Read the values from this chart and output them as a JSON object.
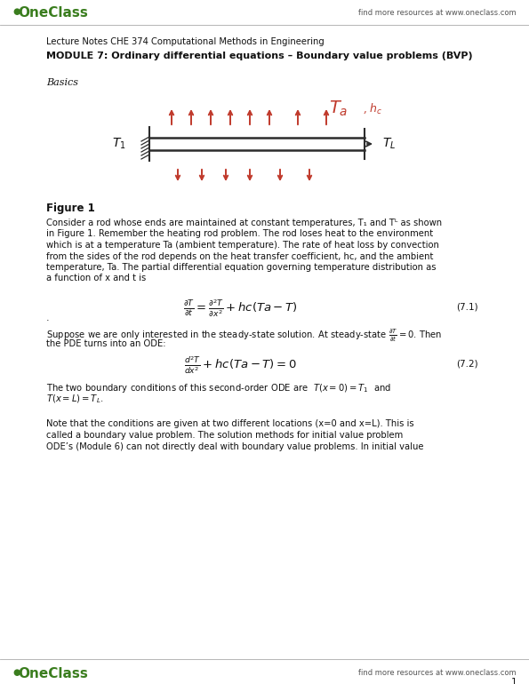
{
  "bg_color": "#ffffff",
  "page_width": 5.95,
  "page_height": 7.7,
  "dpi": 100,
  "oneclass_green": "#3a7d1e",
  "header_text": "find more resources at www.oneclass.com",
  "footer_text": "find more resources at www.oneclass.com",
  "course_line": "Lecture Notes CHE 374 Computational Methods in Engineering",
  "module_title": "MODULE 7: Ordinary differential equations – Boundary value problems (BVP)",
  "basics_label": "Basics",
  "figure_label": "Figure 1",
  "page_number": "1",
  "para1_lines": [
    "Consider a rod whose ends are maintained at constant temperatures, T₁ and Tᴸ as shown",
    "in Figure 1. Remember the heating rod problem. The rod loses heat to the environment",
    "which is at a temperature Ta (ambient temperature). The rate of heat loss by convection",
    "from the sides of the rod depends on the heat transfer coefficient, hc, and the ambient",
    "temperature, Ta. The partial differential equation governing temperature distribution as",
    "a function of x and t is"
  ],
  "eq1_label": "(7.1)",
  "steady_state_lines": [
    "Suppose we are only interested in the steady-state solution. At steady-state",
    "the PDE turns into an ODE:"
  ],
  "eq2_label": "(7.2)",
  "bc_lines": [
    "The two boundary conditions of this second-order ODE are  T(x = 0) = T₁  and",
    "T(x = L) = Tᴸ."
  ],
  "note_lines": [
    "Note that the conditions are given at two different locations (x=0 and x=L). This is",
    "called a ​boundary value problem​. The solution methods for ​initial value problem​",
    "ODE’s (Module 6) can not directly deal with boundary value problems. In initial value"
  ],
  "arrow_color": "#c0392b",
  "rod_color": "#2c2c2c",
  "text_color": "#111111",
  "subtle_color": "#555555"
}
